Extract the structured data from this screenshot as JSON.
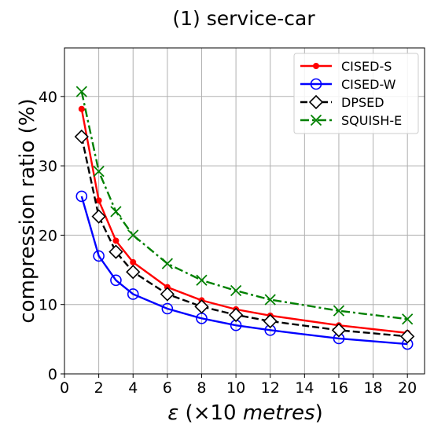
{
  "chart_data": {
    "type": "line",
    "title": "(1) service-car",
    "xlabel": {
      "symbol": "ε",
      "prefix": " (×10 ",
      "unit": "metres",
      "suffix": ")"
    },
    "ylabel": "compression ratio (%)",
    "xlim": [
      0,
      21
    ],
    "ylim": [
      0,
      47
    ],
    "x_ticks": [
      0,
      2,
      4,
      6,
      8,
      10,
      12,
      14,
      16,
      18,
      20
    ],
    "y_ticks": [
      0,
      10,
      20,
      30,
      40
    ],
    "grid": true,
    "legend_position": "top-right",
    "x": [
      1,
      2,
      3,
      4,
      6,
      8,
      10,
      12,
      16,
      20
    ],
    "series": [
      {
        "name": "CISED-S",
        "color": "#ff0000",
        "marker": "dot",
        "line": "solid",
        "values": [
          38.2,
          25.0,
          19.2,
          16.1,
          12.5,
          10.6,
          9.3,
          8.4,
          7.0,
          5.9
        ]
      },
      {
        "name": "CISED-W",
        "color": "#0000ff",
        "marker": "circle",
        "line": "solid",
        "values": [
          25.6,
          17.0,
          13.5,
          11.5,
          9.4,
          8.0,
          7.0,
          6.3,
          5.1,
          4.3
        ]
      },
      {
        "name": "DPSED",
        "color": "#000000",
        "marker": "diamond",
        "line": "dashed",
        "values": [
          34.2,
          22.7,
          17.6,
          14.7,
          11.5,
          9.7,
          8.5,
          7.6,
          6.3,
          5.4
        ]
      },
      {
        "name": "SQUISH-E",
        "color": "#008000",
        "marker": "x",
        "line": "dashdot",
        "values": [
          40.7,
          29.2,
          23.4,
          20.0,
          15.9,
          13.5,
          12.0,
          10.7,
          9.1,
          7.9
        ]
      }
    ]
  }
}
